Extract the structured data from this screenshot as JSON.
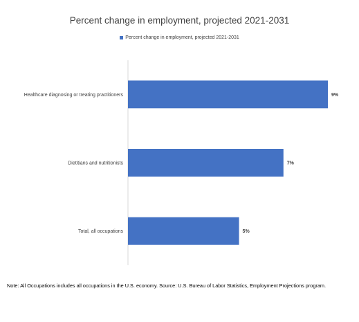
{
  "chart_data": {
    "type": "bar",
    "orientation": "horizontal",
    "title": "Percent change in employment, projected 2021-2031",
    "categories": [
      "Healthcare diagnosing or treating practitioners",
      "Dietitians and nutritionists",
      "Total, all occupations"
    ],
    "series": [
      {
        "name": "Percent change in employment, projected 2021-2031",
        "values": [
          9,
          7,
          5
        ],
        "data_labels": [
          "9%",
          "7%",
          "5%"
        ],
        "color": "#4472C4"
      }
    ],
    "xlim": [
      0,
      10
    ],
    "grid": false,
    "legend_position": "top"
  },
  "footnote": "Note: All Occupations includes all occupations in the U.S. economy. Source: U.S. Bureau of Labor Statistics, Employment Projections program."
}
